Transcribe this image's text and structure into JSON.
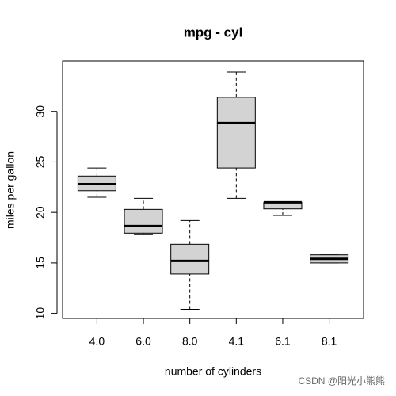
{
  "chart_data": {
    "type": "box",
    "title": "mpg - cyl",
    "x_label": "number of cylinders",
    "y_label": "miles per gallon",
    "watermark": "CSDN @阳光小熊熊",
    "categories": [
      "4.0",
      "6.0",
      "8.0",
      "4.1",
      "6.1",
      "8.1"
    ],
    "boxes": [
      {
        "min": 21.5,
        "q1": 22.15,
        "median": 22.8,
        "q3": 23.6,
        "max": 24.4
      },
      {
        "min": 17.8,
        "q1": 17.95,
        "median": 18.65,
        "q3": 20.3,
        "max": 21.4
      },
      {
        "min": 10.4,
        "q1": 13.9,
        "median": 15.2,
        "q3": 16.85,
        "max": 19.2
      },
      {
        "min": 21.4,
        "q1": 24.4,
        "median": 28.85,
        "q3": 31.4,
        "max": 33.9
      },
      {
        "min": 19.7,
        "q1": 20.35,
        "median": 21,
        "q3": 21,
        "max": 21
      },
      {
        "min": 15.0,
        "q1": 15.0,
        "median": 15.4,
        "q3": 15.8,
        "max": 15.8
      }
    ],
    "color": "#d3d3d3",
    "ylim": [
      9.5,
      35
    ],
    "yticks": [
      10,
      15,
      20,
      25,
      30
    ]
  }
}
